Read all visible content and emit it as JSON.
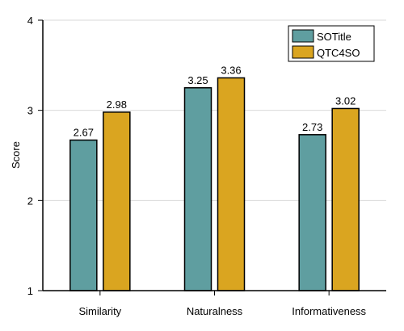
{
  "chart_data": {
    "type": "bar",
    "categories": [
      "Similarity",
      "Naturalness",
      "Informativeness"
    ],
    "series": [
      {
        "name": "SOTitle",
        "values": [
          2.67,
          3.25,
          2.73
        ],
        "color": "#5f9ea0"
      },
      {
        "name": "QTC4SO",
        "values": [
          2.98,
          3.36,
          3.02
        ],
        "color": "#daa520"
      }
    ],
    "ylabel": "Score",
    "ylim": [
      1,
      4
    ],
    "yticks": [
      1,
      2,
      3,
      4
    ],
    "grid": true,
    "legend": "top-right"
  }
}
